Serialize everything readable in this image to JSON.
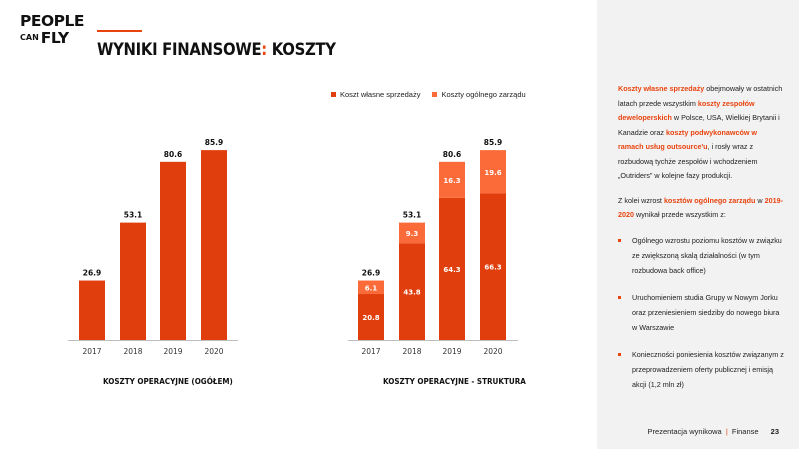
{
  "logo": {
    "line1": "PEOPLE",
    "line2_small": "CAN",
    "line2_big": "FLY"
  },
  "title": {
    "main": "WYNIKI FINANSOWE",
    "colon": ":",
    "rest": " KOSZTY"
  },
  "legend": [
    {
      "label": "Koszt własne sprzedaży",
      "color": "#e03e0c"
    },
    {
      "label": "Koszty ogólnego zarządu",
      "color": "#fa6b39"
    }
  ],
  "chart_data": [
    {
      "type": "bar",
      "title": "KOSZTY OPERACYJNE (OGÓŁEM)",
      "categories": [
        "2017",
        "2018",
        "2019",
        "2020"
      ],
      "values": [
        26.9,
        53.1,
        80.6,
        85.9
      ],
      "value_labels": [
        "26.9",
        "53.1",
        "80.6",
        "85.9"
      ],
      "ylim": [
        0,
        95
      ],
      "color": "#e03e0c"
    },
    {
      "type": "bar",
      "stacked": true,
      "title": "KOSZTY OPERACYJNE - STRUKTURA",
      "categories": [
        "2017",
        "2018",
        "2019",
        "2020"
      ],
      "series": [
        {
          "name": "Koszt własne sprzedaży",
          "values": [
            20.8,
            43.8,
            64.3,
            66.3
          ],
          "labels": [
            "20.8",
            "43.8",
            "64.3",
            "66.3"
          ],
          "color": "#e03e0c"
        },
        {
          "name": "Koszty ogólnego zarządu",
          "values": [
            6.1,
            9.3,
            16.3,
            19.6
          ],
          "labels": [
            "6.1",
            "9.3",
            "16.3",
            "19.6"
          ],
          "color": "#fa6b39"
        }
      ],
      "totals": [
        26.9,
        53.1,
        80.6,
        85.9
      ],
      "total_labels": [
        "26.9",
        "53.1",
        "80.6",
        "85.9"
      ],
      "ylim": [
        0,
        95
      ]
    }
  ],
  "sidebar": {
    "p1": {
      "hl1": "Koszty własne sprzedaży",
      "t1": " obejmowały w ostatnich latach przede wszystkim ",
      "hl2": "koszty zespołów deweloperskich",
      "t2": " w Polsce, USA, Wielkiej Brytanii i Kanadzie oraz ",
      "hl3": "koszty podwykonawców w ramach usług outsource'u",
      "t3": ", i rosły wraz z rozbudową tychże zespołów i wchodzeniem „Outriders” w kolejne fazy produkcji."
    },
    "p2": {
      "t1": "Z kolei wzrost ",
      "hl1": "kosztów ogólnego zarządu",
      "t2": " w ",
      "hl2": "2019-2020",
      "t3": " wynikał przede wszystkim z:"
    },
    "bullets": [
      "Ogólnego wzrostu poziomu kosztów w związku ze zwiększoną skalą działalności (w tym rozbudowa back office)",
      "Uruchomieniem studia Grupy w Nowym Jorku oraz przeniesieniem siedziby do nowego biura w Warszawie",
      "Konieczności poniesienia kosztów związanym z przeprowadzeniem oferty publicznej i emisją akcji (1,2 mln zł)"
    ]
  },
  "footer": {
    "label": "Prezentacja wynikowa",
    "sep": "|",
    "section": "Finanse",
    "page": "23"
  }
}
